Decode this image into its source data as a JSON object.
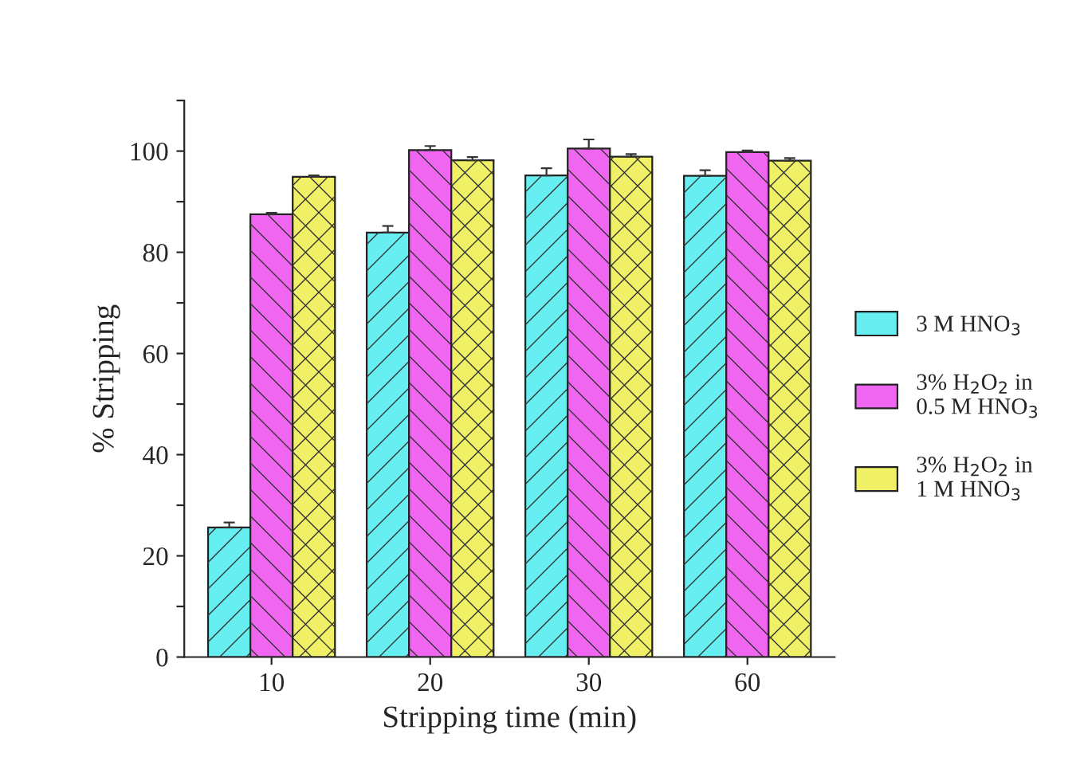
{
  "chart_data": {
    "type": "bar",
    "xlabel": "Stripping time (min)",
    "ylabel": "% Stripping",
    "categories": [
      "10",
      "20",
      "30",
      "60"
    ],
    "series": [
      {
        "name": "3 M HNO$_{3}$",
        "color": "#66eef0",
        "values": [
          25.6,
          83.9,
          95.2,
          95.1
        ],
        "errors": [
          1.0,
          1.3,
          1.4,
          1.1
        ]
      },
      {
        "name": "3% H$_{2}$O$_{2}$ in\n0.5 M HNO$_{3}$",
        "color": "#f066f0",
        "values": [
          87.5,
          100.2,
          100.5,
          99.8
        ],
        "errors": [
          0.3,
          0.8,
          1.8,
          0.3
        ]
      },
      {
        "name": "3% H$_{2}$O$_{2}$ in\n1 M HNO$_{3}$",
        "color": "#f0f066",
        "values": [
          94.9,
          98.2,
          98.9,
          98.1
        ],
        "errors": [
          0.3,
          0.6,
          0.5,
          0.5
        ]
      }
    ],
    "ylim": [
      0,
      110
    ],
    "yticks": [
      0,
      {
        "value": 10,
        "label": null
      },
      20,
      {
        "value": 30,
        "label": null
      },
      40,
      {
        "value": 50,
        "label": null
      },
      60,
      {
        "value": 70,
        "label": null
      },
      80,
      {
        "value": 90,
        "label": null
      },
      100,
      {
        "value": 110,
        "label": null
      }
    ],
    "grid": false,
    "legend": "right"
  }
}
